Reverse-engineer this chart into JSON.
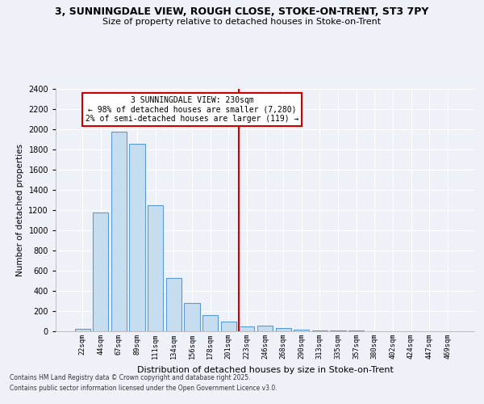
{
  "title": "3, SUNNINGDALE VIEW, ROUGH CLOSE, STOKE-ON-TRENT, ST3 7PY",
  "subtitle": "Size of property relative to detached houses in Stoke-on-Trent",
  "xlabel": "Distribution of detached houses by size in Stoke-on-Trent",
  "ylabel": "Number of detached properties",
  "categories": [
    "22sqm",
    "44sqm",
    "67sqm",
    "89sqm",
    "111sqm",
    "134sqm",
    "156sqm",
    "178sqm",
    "201sqm",
    "223sqm",
    "246sqm",
    "268sqm",
    "290sqm",
    "313sqm",
    "335sqm",
    "357sqm",
    "380sqm",
    "402sqm",
    "424sqm",
    "447sqm",
    "469sqm"
  ],
  "values": [
    25,
    1175,
    1975,
    1860,
    1250,
    525,
    280,
    160,
    95,
    45,
    55,
    35,
    18,
    10,
    6,
    5,
    4,
    3,
    3,
    2,
    1
  ],
  "bar_color": "#c6ddf0",
  "bar_edge_color": "#5b9bd5",
  "vline_index": 9,
  "marker_line1": "3 SUNNINGDALE VIEW: 230sqm",
  "marker_line2": "← 98% of detached houses are smaller (7,280)",
  "marker_line3": "2% of semi-detached houses are larger (119) →",
  "vline_color": "#cc0000",
  "ylim": [
    0,
    2400
  ],
  "yticks": [
    0,
    200,
    400,
    600,
    800,
    1000,
    1200,
    1400,
    1600,
    1800,
    2000,
    2200,
    2400
  ],
  "background_color": "#eef2f8",
  "grid_color": "#ffffff",
  "footnote1": "Contains HM Land Registry data © Crown copyright and database right 2025.",
  "footnote2": "Contains public sector information licensed under the Open Government Licence v3.0."
}
